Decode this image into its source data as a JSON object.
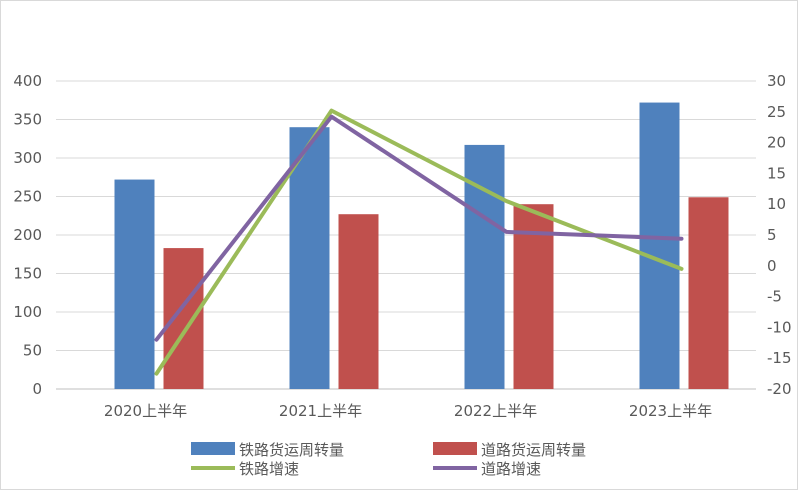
{
  "chart_data": {
    "type": "bar+line",
    "categories": [
      "2020上半年",
      "2021上半年",
      "2022上半年",
      "2023上半年"
    ],
    "bar_series": [
      {
        "name": "铁路货运周转量",
        "values": [
          272,
          340,
          317,
          372
        ],
        "color": "#4F81BD"
      },
      {
        "name": "道路货运周转量",
        "values": [
          183,
          227,
          240,
          249
        ],
        "color": "#C0504D"
      }
    ],
    "line_series": [
      {
        "name": "铁路增速",
        "values": [
          -17.5,
          25.2,
          10.5,
          -0.5
        ],
        "color": "#9BBB59"
      },
      {
        "name": "道路增速",
        "values": [
          -12.0,
          24.2,
          5.5,
          4.4
        ],
        "color": "#8064A2"
      }
    ],
    "y_left": {
      "min": 0,
      "max": 400,
      "step": 50,
      "ticks": [
        "0",
        "50",
        "100",
        "150",
        "200",
        "250",
        "300",
        "350",
        "400"
      ]
    },
    "y_right": {
      "min": -20,
      "max": 30,
      "step": 5,
      "ticks": [
        "-20",
        "-15",
        "-10",
        "-5",
        "0",
        "5",
        "10",
        "15",
        "20",
        "25",
        "30"
      ]
    },
    "grid": true,
    "legend": {
      "position": "bottom",
      "items": [
        "铁路货运周转量",
        "道路货运周转量",
        "铁路增速",
        "道路增速"
      ]
    }
  }
}
